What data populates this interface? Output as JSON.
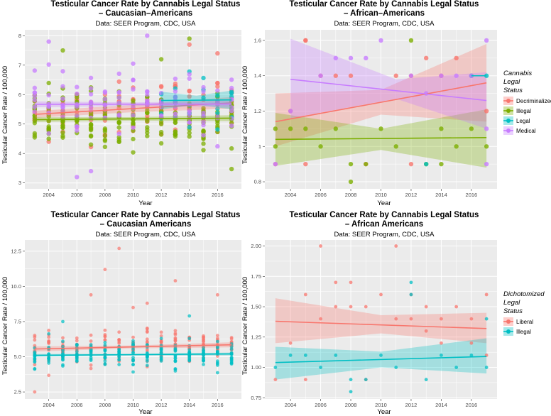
{
  "colors": {
    "decriminalized": "#F8766D",
    "illegal": "#7CAE00",
    "legal": "#00BFC4",
    "medical": "#C77CFF",
    "liberal": "#F8766D",
    "illegal2": "#00BFC4",
    "panel_bg": "#EBEBEB",
    "grid": "#FFFFFF"
  },
  "chart_data": [
    {
      "type": "scatter",
      "title_line1": "Testicular Cancer Rate by Cannabis Legal Status",
      "title_line2": "– Caucasian–Americans",
      "subtitle": "Data: SEER Program, CDC, USA",
      "xlabel": "Year",
      "ylabel": "Testicular Cancer Rate / 100,000",
      "xlim": [
        2002.3,
        2017.7
      ],
      "ylim": [
        2.8,
        8.2
      ],
      "xticks": [
        2004,
        2006,
        2008,
        2010,
        2012,
        2014,
        2016
      ],
      "yticks": [
        3,
        4,
        5,
        6,
        7,
        8
      ],
      "series": [
        {
          "name": "Decriminalized",
          "color_key": "decriminalized",
          "fit": [
            [
              2003,
              5.33
            ],
            [
              2017,
              5.72
            ]
          ],
          "band": [
            0.12,
            0.12,
            0.2
          ],
          "spread": 0.75,
          "lo": 3.4,
          "hi": 7.9,
          "per_year": 8,
          "extra": [
            [
              2014,
              7.7
            ],
            [
              2016,
              7.4
            ]
          ]
        },
        {
          "name": "Illegal",
          "color_key": "illegal",
          "fit": [
            [
              2003,
              5.15
            ],
            [
              2017,
              5.2
            ]
          ],
          "band": [
            0.08,
            0.06,
            0.1
          ],
          "spread": 0.8,
          "lo": 3.4,
          "hi": 7.9,
          "per_year": 16,
          "extra": [
            [
              2005,
              7.5
            ],
            [
              2014,
              7.9
            ],
            [
              2012,
              7.2
            ]
          ]
        },
        {
          "name": "Legal",
          "color_key": "legal",
          "fit": [
            [
              2012,
              5.8
            ],
            [
              2017,
              5.82
            ]
          ],
          "band": [
            0.3,
            0.15,
            0.32
          ],
          "spread": 0.7,
          "lo": 4.0,
          "hi": 7.1,
          "per_year": 4,
          "extra": []
        },
        {
          "name": "Medical",
          "color_key": "medical",
          "fit": [
            [
              2003,
              5.67
            ],
            [
              2017,
              5.68
            ]
          ],
          "band": [
            0.1,
            0.06,
            0.1
          ],
          "spread": 0.8,
          "lo": 3.2,
          "hi": 8.0,
          "per_year": 8,
          "extra": [
            [
              2004,
              7.8
            ],
            [
              2011,
              8.0
            ],
            [
              2006,
              3.2
            ],
            [
              2007,
              3.4
            ]
          ]
        }
      ],
      "legend": {
        "title": [
          "Cannabis",
          "Legal",
          "Status"
        ],
        "placement": "right",
        "entries": [
          "Decriminalized",
          "Illegal",
          "Legal",
          "Medical"
        ]
      }
    },
    {
      "type": "scatter",
      "title_line1": "Testicular Cancer Rate by Cannabis Legal Status",
      "title_line2": "– African–Americans",
      "subtitle": "Data: SEER Program, CDC, USA",
      "xlabel": "Year",
      "ylabel": "Testicular Cancer Rate / 100,000",
      "xlim": [
        2002.3,
        2017.7
      ],
      "ylim": [
        0.76,
        1.66
      ],
      "xticks": [
        2004,
        2006,
        2008,
        2010,
        2012,
        2014,
        2016
      ],
      "yticks": [
        0.8,
        1.0,
        1.2,
        1.4,
        1.6
      ],
      "points": [
        {
          "s": "decriminalized",
          "x": 2003,
          "y": 0.9
        },
        {
          "s": "decriminalized",
          "x": 2004,
          "y": 1.2
        },
        {
          "s": "decriminalized",
          "x": 2005,
          "y": 1.6
        },
        {
          "s": "decriminalized",
          "x": 2005,
          "y": 1.6
        },
        {
          "s": "decriminalized",
          "x": 2005,
          "y": 0.9
        },
        {
          "s": "decriminalized",
          "x": 2006,
          "y": 1.4
        },
        {
          "s": "decriminalized",
          "x": 2007,
          "y": 1.4
        },
        {
          "s": "decriminalized",
          "x": 2008,
          "y": 1.4
        },
        {
          "s": "decriminalized",
          "x": 2009,
          "y": 0.9
        },
        {
          "s": "decriminalized",
          "x": 2011,
          "y": 1.4
        },
        {
          "s": "decriminalized",
          "x": 2012,
          "y": 1.4
        },
        {
          "s": "decriminalized",
          "x": 2012,
          "y": 0.9
        },
        {
          "s": "decriminalized",
          "x": 2013,
          "y": 1.5
        },
        {
          "s": "decriminalized",
          "x": 2014,
          "y": 1.4
        },
        {
          "s": "decriminalized",
          "x": 2015,
          "y": 1.5
        },
        {
          "s": "decriminalized",
          "x": 2016,
          "y": 1.4
        },
        {
          "s": "decriminalized",
          "x": 2017,
          "y": 1.2
        },
        {
          "s": "illegal",
          "x": 2003,
          "y": 1.0
        },
        {
          "s": "illegal",
          "x": 2004,
          "y": 1.1
        },
        {
          "s": "illegal",
          "x": 2005,
          "y": 1.1
        },
        {
          "s": "illegal",
          "x": 2006,
          "y": 1.0
        },
        {
          "s": "illegal",
          "x": 2007,
          "y": 1.1
        },
        {
          "s": "illegal",
          "x": 2008,
          "y": 0.8
        },
        {
          "s": "illegal",
          "x": 2008,
          "y": 0.9
        },
        {
          "s": "illegal",
          "x": 2009,
          "y": 0.9
        },
        {
          "s": "illegal",
          "x": 2010,
          "y": 1.1
        },
        {
          "s": "illegal",
          "x": 2011,
          "y": 1.0
        },
        {
          "s": "illegal",
          "x": 2012,
          "y": 1.6
        },
        {
          "s": "illegal",
          "x": 2013,
          "y": 0.9
        },
        {
          "s": "illegal",
          "x": 2014,
          "y": 1.1
        },
        {
          "s": "illegal",
          "x": 2015,
          "y": 1.0
        },
        {
          "s": "illegal",
          "x": 2016,
          "y": 1.1
        },
        {
          "s": "illegal",
          "x": 2017,
          "y": 1.0
        },
        {
          "s": "illegal",
          "x": 2003,
          "y": 1.1
        },
        {
          "s": "illegal",
          "x": 2014,
          "y": 0.9
        },
        {
          "s": "legal",
          "x": 2013,
          "y": 0.9
        },
        {
          "s": "legal",
          "x": 2016,
          "y": 1.4
        },
        {
          "s": "legal",
          "x": 2017,
          "y": 1.4
        },
        {
          "s": "medical",
          "x": 2003,
          "y": 0.9
        },
        {
          "s": "medical",
          "x": 2004,
          "y": 1.2
        },
        {
          "s": "medical",
          "x": 2006,
          "y": 1.4
        },
        {
          "s": "medical",
          "x": 2007,
          "y": 1.5
        },
        {
          "s": "medical",
          "x": 2008,
          "y": 1.5
        },
        {
          "s": "medical",
          "x": 2009,
          "y": 1.5
        },
        {
          "s": "medical",
          "x": 2010,
          "y": 1.6
        },
        {
          "s": "medical",
          "x": 2012,
          "y": 1.4
        },
        {
          "s": "medical",
          "x": 2013,
          "y": 1.3
        },
        {
          "s": "medical",
          "x": 2014,
          "y": 1.4
        },
        {
          "s": "medical",
          "x": 2015,
          "y": 1.4
        },
        {
          "s": "medical",
          "x": 2016,
          "y": 1.4
        },
        {
          "s": "medical",
          "x": 2017,
          "y": 1.6
        },
        {
          "s": "medical",
          "x": 2017,
          "y": 0.9
        },
        {
          "s": "medical",
          "x": 2017,
          "y": 1.1
        }
      ],
      "fits": [
        {
          "s": "decriminalized",
          "x0": 2003,
          "x1": 2017,
          "y0": 1.14,
          "y1": 1.36,
          "band": [
            [
              2003,
              1.0,
              1.3
            ],
            [
              2010,
              1.18,
              1.32
            ],
            [
              2017,
              1.14,
              1.58
            ]
          ]
        },
        {
          "s": "illegal",
          "x0": 2003,
          "x1": 2017,
          "y0": 1.04,
          "y1": 1.05,
          "band": [
            [
              2003,
              0.89,
              1.19
            ],
            [
              2010,
              0.98,
              1.1
            ],
            [
              2017,
              0.88,
              1.21
            ]
          ]
        },
        {
          "s": "legal",
          "x0": 2016,
          "x1": 2017,
          "y0": 1.4,
          "y1": 1.4,
          "band": [
            [
              2016,
              1.4,
              1.4
            ],
            [
              2017,
              1.4,
              1.4
            ]
          ]
        },
        {
          "s": "medical",
          "x0": 2004,
          "x1": 2017,
          "y0": 1.38,
          "y1": 1.26,
          "band": [
            [
              2004,
              1.16,
              1.61
            ],
            [
              2011,
              1.27,
              1.38
            ],
            [
              2017,
              1.1,
              1.42
            ]
          ]
        }
      ]
    },
    {
      "type": "scatter",
      "title_line1": "Testicular Cancer Rate by Cannabis Legal Status",
      "title_line2": "– Caucasian Americans",
      "subtitle": "Data: SEER Program, CDC, USA",
      "xlabel": "Year",
      "ylabel": "Testicular Cancer Rate / 100,000",
      "xlim": [
        2002.3,
        2017.7
      ],
      "ylim": [
        2.0,
        13.3
      ],
      "xticks": [
        2004,
        2006,
        2008,
        2010,
        2012,
        2014,
        2016
      ],
      "yticks": [
        2.5,
        5.0,
        7.5,
        10.0,
        12.5
      ],
      "yticklabels": [
        "2.5",
        "5.0",
        "7.5",
        "10.0",
        "12.5"
      ],
      "series": [
        {
          "name": "Liberal",
          "color_key": "liberal",
          "fit": [
            [
              2003,
              5.55
            ],
            [
              2017,
              5.85
            ]
          ],
          "band": [
            0.18,
            0.1,
            0.18
          ],
          "spread": 0.9,
          "lo": 3.4,
          "hi": 8.0,
          "per_year": 14,
          "extra": [
            [
              2003,
              2.5
            ],
            [
              2008,
              11.2
            ],
            [
              2009,
              12.7
            ],
            [
              2013,
              10.4
            ],
            [
              2016,
              9.4
            ],
            [
              2007,
              9.4
            ],
            [
              2011,
              8.8
            ],
            [
              2010,
              8.5
            ]
          ]
        },
        {
          "name": "Illegal",
          "color_key": "illegal2",
          "fit": [
            [
              2003,
              5.1
            ],
            [
              2017,
              5.2
            ]
          ],
          "band": [
            0.1,
            0.06,
            0.1
          ],
          "spread": 0.75,
          "lo": 3.4,
          "hi": 7.9,
          "per_year": 16,
          "extra": [
            [
              2005,
              7.5
            ],
            [
              2014,
              7.9
            ]
          ]
        }
      ]
    },
    {
      "type": "scatter",
      "title_line1": "Testicular Cancer Rate by Cannabis Legal Status",
      "title_line2": "– African Americans",
      "subtitle": "Data: SEER Program, CDC, USA",
      "xlabel": "Year",
      "ylabel": "Testicular Cancer Rate / 100,000",
      "xlim": [
        2002.3,
        2017.7
      ],
      "ylim": [
        0.74,
        2.05
      ],
      "xticks": [
        2004,
        2006,
        2008,
        2010,
        2012,
        2014,
        2016
      ],
      "yticks": [
        0.75,
        1.0,
        1.25,
        1.5,
        1.75,
        2.0
      ],
      "yticklabels": [
        "0.75",
        "1.00",
        "1.25",
        "1.50",
        "1.75",
        "2.00"
      ],
      "points": [
        {
          "s": "liberal",
          "x": 2003,
          "y": 0.9
        },
        {
          "s": "liberal",
          "x": 2004,
          "y": 1.2
        },
        {
          "s": "liberal",
          "x": 2005,
          "y": 1.6
        },
        {
          "s": "liberal",
          "x": 2005,
          "y": 0.9
        },
        {
          "s": "liberal",
          "x": 2006,
          "y": 1.4
        },
        {
          "s": "liberal",
          "x": 2006,
          "y": 2.0
        },
        {
          "s": "liberal",
          "x": 2007,
          "y": 1.5
        },
        {
          "s": "liberal",
          "x": 2007,
          "y": 1.7
        },
        {
          "s": "liberal",
          "x": 2008,
          "y": 1.5
        },
        {
          "s": "liberal",
          "x": 2008,
          "y": 1.7
        },
        {
          "s": "liberal",
          "x": 2009,
          "y": 1.5
        },
        {
          "s": "liberal",
          "x": 2009,
          "y": 0.9
        },
        {
          "s": "liberal",
          "x": 2010,
          "y": 1.6
        },
        {
          "s": "liberal",
          "x": 2011,
          "y": 2.0
        },
        {
          "s": "liberal",
          "x": 2011,
          "y": 1.4
        },
        {
          "s": "liberal",
          "x": 2012,
          "y": 1.4
        },
        {
          "s": "liberal",
          "x": 2012,
          "y": 1.6
        },
        {
          "s": "liberal",
          "x": 2013,
          "y": 1.5
        },
        {
          "s": "liberal",
          "x": 2013,
          "y": 1.3
        },
        {
          "s": "liberal",
          "x": 2014,
          "y": 1.4
        },
        {
          "s": "liberal",
          "x": 2015,
          "y": 1.5
        },
        {
          "s": "liberal",
          "x": 2016,
          "y": 1.4
        },
        {
          "s": "liberal",
          "x": 2016,
          "y": 1.2
        },
        {
          "s": "liberal",
          "x": 2017,
          "y": 1.6
        },
        {
          "s": "liberal",
          "x": 2017,
          "y": 1.1
        },
        {
          "s": "liberal",
          "x": 2014,
          "y": 1.2
        },
        {
          "s": "illegal2",
          "x": 2003,
          "y": 1.0
        },
        {
          "s": "illegal2",
          "x": 2004,
          "y": 1.1
        },
        {
          "s": "illegal2",
          "x": 2005,
          "y": 1.1
        },
        {
          "s": "illegal2",
          "x": 2006,
          "y": 1.0
        },
        {
          "s": "illegal2",
          "x": 2007,
          "y": 1.1
        },
        {
          "s": "illegal2",
          "x": 2008,
          "y": 0.8
        },
        {
          "s": "illegal2",
          "x": 2008,
          "y": 0.9
        },
        {
          "s": "illegal2",
          "x": 2009,
          "y": 0.9
        },
        {
          "s": "illegal2",
          "x": 2010,
          "y": 1.1
        },
        {
          "s": "illegal2",
          "x": 2011,
          "y": 1.0
        },
        {
          "s": "illegal2",
          "x": 2012,
          "y": 1.7
        },
        {
          "s": "illegal2",
          "x": 2012,
          "y": 1.6
        },
        {
          "s": "illegal2",
          "x": 2013,
          "y": 0.9
        },
        {
          "s": "illegal2",
          "x": 2014,
          "y": 1.1
        },
        {
          "s": "illegal2",
          "x": 2015,
          "y": 1.0
        },
        {
          "s": "illegal2",
          "x": 2016,
          "y": 1.1
        },
        {
          "s": "illegal2",
          "x": 2017,
          "y": 1.0
        },
        {
          "s": "illegal2",
          "x": 2017,
          "y": 1.4
        }
      ],
      "fits": [
        {
          "s": "liberal",
          "x0": 2003,
          "x1": 2017,
          "y0": 1.38,
          "y1": 1.32,
          "band": [
            [
              2003,
              1.2,
              1.57
            ],
            [
              2010,
              1.28,
              1.43
            ],
            [
              2017,
              1.2,
              1.45
            ]
          ]
        },
        {
          "s": "illegal2",
          "x0": 2003,
          "x1": 2017,
          "y0": 1.04,
          "y1": 1.09,
          "band": [
            [
              2003,
              0.9,
              1.17
            ],
            [
              2010,
              1.0,
              1.13
            ],
            [
              2017,
              0.95,
              1.24
            ]
          ]
        }
      ],
      "legend": {
        "title": [
          "Dichotomized",
          "Legal",
          "Status"
        ],
        "placement": "right",
        "entries": [
          "Liberal",
          "Illegal"
        ]
      }
    }
  ]
}
